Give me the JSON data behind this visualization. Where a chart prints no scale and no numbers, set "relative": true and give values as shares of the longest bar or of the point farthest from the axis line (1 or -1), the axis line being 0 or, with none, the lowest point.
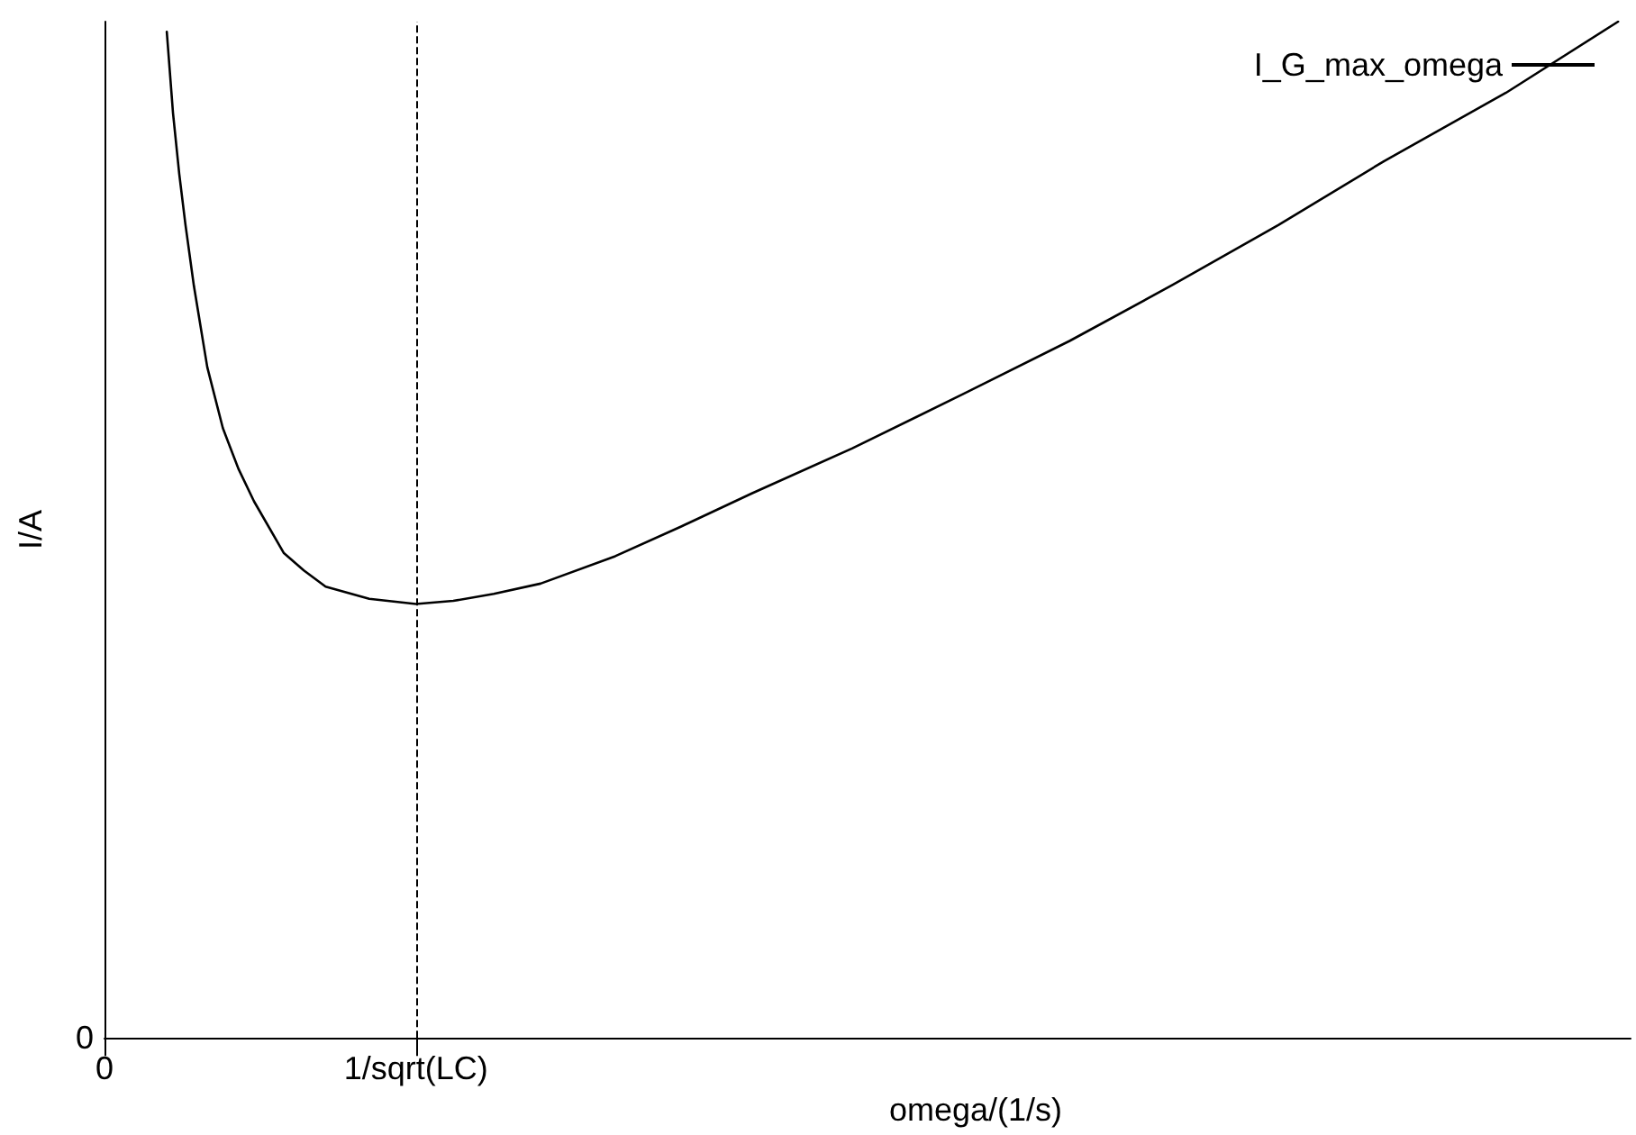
{
  "chart_data": {
    "type": "line",
    "relative": true,
    "xlabel": "omega/(1/s)",
    "ylabel": "I/A",
    "x": [
      0.2,
      0.22,
      0.24,
      0.26,
      0.287,
      0.33,
      0.38,
      0.43,
      0.48,
      0.576,
      0.64,
      0.71,
      0.85,
      1.0,
      1.12,
      1.25,
      1.4,
      1.64,
      1.85,
      2.08,
      2.4,
      2.76,
      3.1,
      3.43,
      3.77,
      4.11,
      4.5,
      4.86
    ],
    "series": [
      {
        "name": "I_G_max_omega",
        "color": "#000000",
        "values": [
          0.99,
          0.91,
          0.85,
          0.8,
          0.74,
          0.66,
          0.6,
          0.56,
          0.528,
          0.477,
          0.46,
          0.444,
          0.432,
          0.427,
          0.43,
          0.437,
          0.447,
          0.474,
          0.503,
          0.536,
          0.58,
          0.634,
          0.686,
          0.741,
          0.8,
          0.863,
          0.93,
          1.0
        ]
      }
    ],
    "xlim": [
      0,
      4.9
    ],
    "xticks": [
      0,
      {
        "value": 1,
        "label": "1/sqrt(LC)"
      }
    ],
    "ref_lines": [
      {
        "axis": "x",
        "value": 1,
        "line_style": "dashed",
        "color": "#000000"
      }
    ],
    "annotations": [
      "0"
    ],
    "legend": "top right",
    "grid": false,
    "marker": "none",
    "line_style": "solid"
  }
}
